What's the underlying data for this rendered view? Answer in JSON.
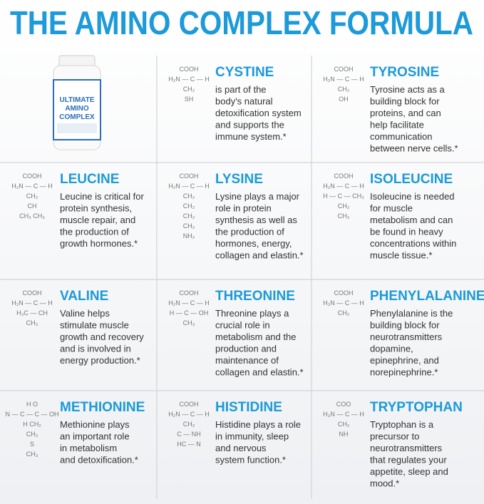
{
  "title": "THE AMINO COMPLEX FORMULA",
  "product": {
    "label": [
      "ULTIMATE",
      "AMINO",
      "COMPLEX"
    ]
  },
  "cells": [
    {
      "name": "CYSTINE",
      "description": [
        "is part of the",
        "body's natural",
        "detoxification system",
        "and supports the",
        "immune system.*"
      ],
      "structure": [
        "COOH",
        "H₂N — C — H",
        "CH₂",
        "SH"
      ]
    },
    {
      "name": "TYROSINE",
      "description": [
        "Tyrosine acts as a",
        "building block for",
        "proteins, and can",
        "help facilitate",
        "communication",
        "between nerve cells.*"
      ],
      "structure": [
        "COOH",
        "H₂N — C — H",
        "CH₂",
        "OH"
      ]
    },
    {
      "name": "LEUCINE",
      "description": [
        "Leucine is critical for",
        "protein synthesis,",
        "muscle repair, and",
        "the production of",
        "growth hormones.*"
      ],
      "structure": [
        "COOH",
        "H₂N — C — H",
        "CH₂",
        "CH",
        "CH₃  CH₃"
      ]
    },
    {
      "name": "LYSINE",
      "description": [
        "Lysine plays a major",
        "role in protein",
        "synthesis as well as",
        "the production of",
        "hormones, energy,",
        "collagen and elastin.*"
      ],
      "structure": [
        "COOH",
        "H₂N — C — H",
        "CH₂",
        "CH₂",
        "CH₂",
        "CH₂",
        "NH₂"
      ]
    },
    {
      "name": "ISOLEUCINE",
      "description": [
        "Isoleucine is needed",
        "for muscle",
        "metabolism and can",
        "be found in heavy",
        "concentrations within",
        "muscle tissue.*"
      ],
      "structure": [
        "COOH",
        "H₂N — C — H",
        "H — C — CH₃",
        "CH₂",
        "CH₃"
      ]
    },
    {
      "name": "VALINE",
      "description": [
        "Valine helps",
        "stimulate muscle",
        "growth and recovery",
        "and is involved in",
        "energy production.*"
      ],
      "structure": [
        "COOH",
        "H₂N — C — H",
        "H₃C — CH",
        "CH₃"
      ]
    },
    {
      "name": "THREONINE",
      "description": [
        "Threonine plays a",
        "crucial role in",
        "metabolism and the",
        "production and",
        "maintenance of",
        "collagen and elastin.*"
      ],
      "structure": [
        "COOH",
        "H₂N — C — H",
        "H — C — OH",
        "CH₃"
      ]
    },
    {
      "name": "PHENYLALANINE",
      "description": [
        "Phenylalanine is the",
        "building block for",
        "neurotransmitters",
        "dopamine,",
        "epinephrine, and",
        "norepinephrine.*"
      ],
      "structure": [
        "COOH",
        "H₂N — C — H",
        "CH₂"
      ]
    },
    {
      "name": "METHIONINE",
      "description": [
        "Methionine plays",
        "an important role",
        "in metabolism",
        "and detoxification.*"
      ],
      "structure": [
        "H    O",
        "N — C — C — OH",
        "H   CH₂",
        "CH₂",
        "S",
        "CH₃"
      ]
    },
    {
      "name": "HISTIDINE",
      "description": [
        "Histidine plays a role",
        "in immunity, sleep",
        "and nervous",
        "system function.*"
      ],
      "structure": [
        "COOH",
        "H₂N — C — H",
        "CH₂",
        "C — NH",
        "HC — N"
      ]
    },
    {
      "name": "TRYPTOPHAN",
      "description": [
        "Tryptophan is a",
        "precursor to",
        "neurotransmitters",
        "that regulates your",
        "appetite, sleep and",
        "mood.*"
      ],
      "structure": [
        "COO",
        "H₃N — C — H",
        "CH₂",
        "NH"
      ]
    }
  ]
}
